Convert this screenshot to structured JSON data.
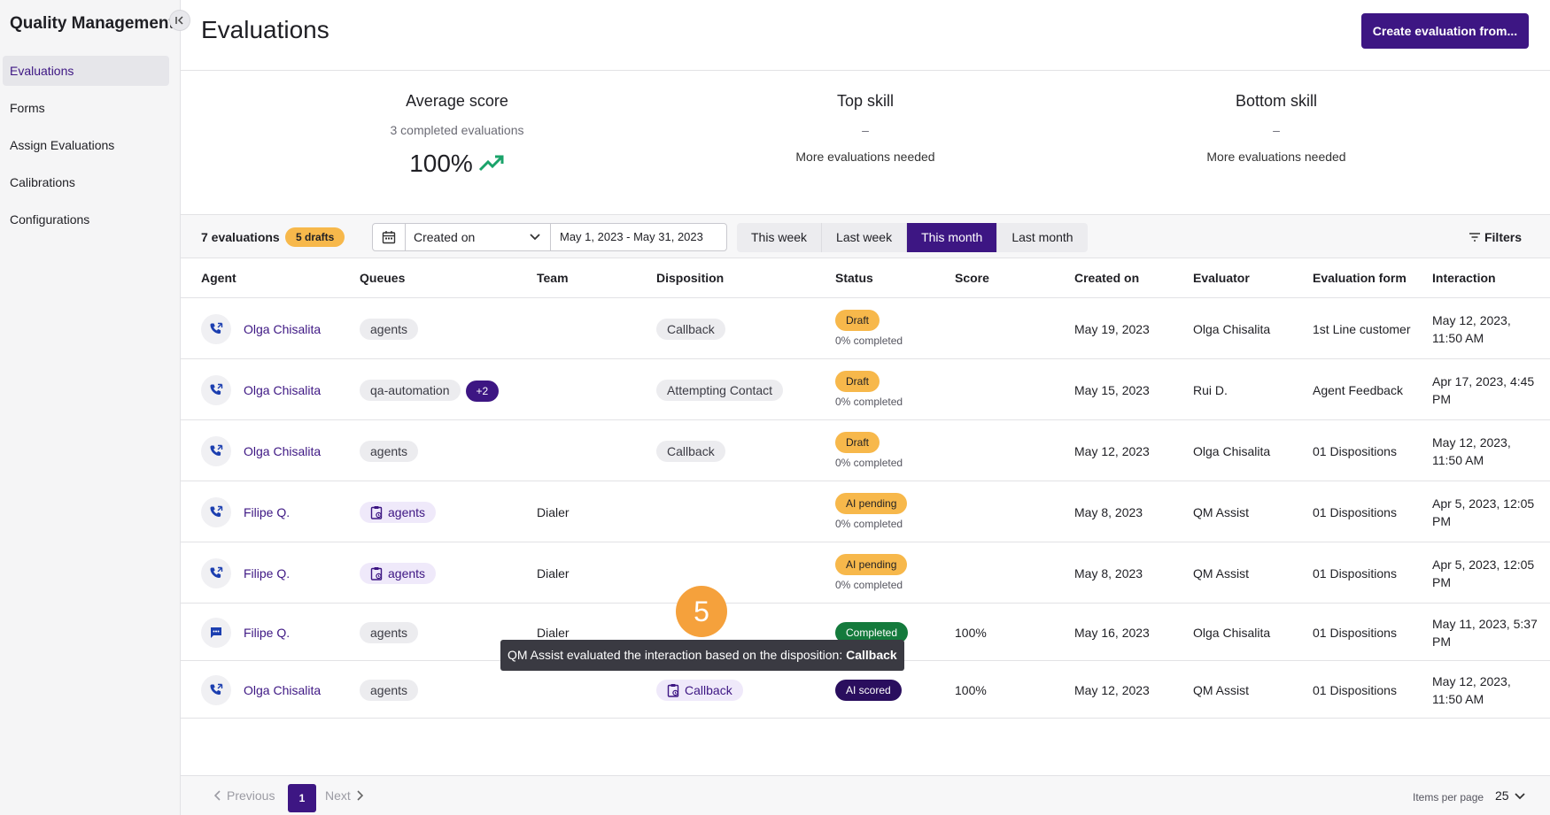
{
  "sidebar": {
    "title": "Quality Management",
    "collapse_icon": "collapse-left-icon",
    "items": [
      {
        "label": "Evaluations",
        "active": true
      },
      {
        "label": "Forms"
      },
      {
        "label": "Assign Evaluations"
      },
      {
        "label": "Calibrations"
      },
      {
        "label": "Configurations"
      }
    ]
  },
  "header": {
    "title": "Evaluations",
    "create_button": "Create evaluation from..."
  },
  "summary": {
    "average": {
      "title": "Average score",
      "subtitle": "3 completed evaluations",
      "value": "100%"
    },
    "top_skill": {
      "title": "Top skill",
      "value": "–",
      "note": "More evaluations needed"
    },
    "bottom_skill": {
      "title": "Bottom skill",
      "value": "–",
      "note": "More evaluations needed"
    }
  },
  "filters": {
    "count": "7 evaluations",
    "drafts": "5 drafts",
    "date_field": "Created on",
    "date_range": "May 1, 2023 - May 31, 2023",
    "periods": [
      "This week",
      "Last week",
      "This month",
      "Last month"
    ],
    "active_period": "This month",
    "filters_label": "Filters"
  },
  "table": {
    "columns": [
      "Agent",
      "Queues",
      "Team",
      "Disposition",
      "Status",
      "Score",
      "Created on",
      "Evaluator",
      "Evaluation form",
      "Interaction"
    ],
    "rows": [
      {
        "channel": "phone-icon",
        "agent": "Olga Chisalita",
        "queue": "agents",
        "queue_ai": false,
        "extra": "",
        "team": "",
        "disposition": "Callback",
        "disp_ai": false,
        "status": "Draft",
        "status_type": "draft",
        "progress": "0% completed",
        "score": "",
        "created": "May 19, 2023",
        "evaluator": "Olga Chisalita",
        "form": "1st Line customer",
        "interaction": [
          "May 12, 2023,",
          "11:50 AM"
        ]
      },
      {
        "channel": "phone-icon",
        "agent": "Olga Chisalita",
        "queue": "qa-automation",
        "queue_ai": false,
        "extra": "+2",
        "team": "",
        "disposition": "Attempting Contact",
        "disp_ai": false,
        "status": "Draft",
        "status_type": "draft",
        "progress": "0% completed",
        "score": "",
        "created": "May 15, 2023",
        "evaluator": "Rui D.",
        "form": "Agent Feedback",
        "interaction": [
          "Apr 17, 2023, 4:45",
          "PM"
        ]
      },
      {
        "channel": "phone-icon",
        "agent": "Olga Chisalita",
        "queue": "agents",
        "queue_ai": false,
        "extra": "",
        "team": "",
        "disposition": "Callback",
        "disp_ai": false,
        "status": "Draft",
        "status_type": "draft",
        "progress": "0% completed",
        "score": "",
        "created": "May 12, 2023",
        "evaluator": "Olga Chisalita",
        "form": "01 Dispositions",
        "interaction": [
          "May 12, 2023,",
          "11:50 AM"
        ]
      },
      {
        "channel": "phone-icon",
        "agent": "Filipe Q.",
        "queue": "agents",
        "queue_ai": true,
        "extra": "",
        "team": "Dialer",
        "disposition": "",
        "disp_ai": false,
        "status": "AI pending",
        "status_type": "draft",
        "progress": "0% completed",
        "score": "",
        "created": "May 8, 2023",
        "evaluator": "QM Assist",
        "form": "01 Dispositions",
        "interaction": [
          "Apr 5, 2023, 12:05",
          "PM"
        ]
      },
      {
        "channel": "phone-icon",
        "agent": "Filipe Q.",
        "queue": "agents",
        "queue_ai": true,
        "extra": "",
        "team": "Dialer",
        "disposition": "",
        "disp_ai": false,
        "status": "AI pending",
        "status_type": "draft",
        "progress": "0% completed",
        "score": "",
        "created": "May 8, 2023",
        "evaluator": "QM Assist",
        "form": "01 Dispositions",
        "interaction": [
          "Apr 5, 2023, 12:05",
          "PM"
        ]
      },
      {
        "channel": "chat-icon",
        "agent": "Filipe Q.",
        "queue": "agents",
        "queue_ai": false,
        "extra": "",
        "team": "Dialer",
        "disposition": "",
        "disp_ai": false,
        "status": "Completed",
        "status_type": "completed",
        "progress": "",
        "score": "100%",
        "created": "May 16, 2023",
        "evaluator": "Olga Chisalita",
        "form": "01 Dispositions",
        "interaction": [
          "May 11, 2023, 5:37",
          "PM"
        ]
      },
      {
        "channel": "phone-icon",
        "agent": "Olga Chisalita",
        "queue": "agents",
        "queue_ai": false,
        "extra": "",
        "team": "",
        "disposition": "Callback",
        "disp_ai": true,
        "status": "AI scored",
        "status_type": "aiscored",
        "progress": "",
        "score": "100%",
        "created": "May 12, 2023",
        "evaluator": "QM Assist",
        "form": "01 Dispositions",
        "interaction": [
          "May 12, 2023,",
          "11:50 AM"
        ]
      }
    ]
  },
  "tooltip": {
    "text": "QM Assist evaluated the interaction based on the disposition: ",
    "bold": "Callback"
  },
  "step_badge": "5",
  "pagination": {
    "previous": "Previous",
    "page": "1",
    "next": "Next",
    "items_label": "Items per page",
    "items_value": "25"
  },
  "colors": {
    "accent": "#3d1683",
    "draft": "#f7b84b",
    "completed": "#147a3c",
    "trend": "#1aa36a"
  }
}
